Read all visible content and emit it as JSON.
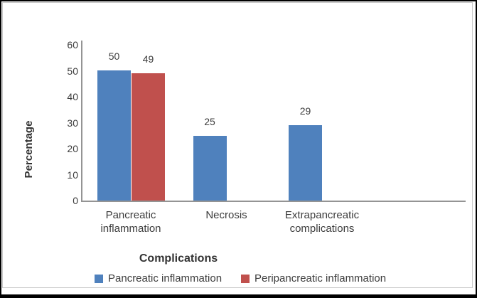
{
  "chart_data": {
    "type": "bar",
    "title": "",
    "xlabel": "Complications",
    "ylabel": "Percentage",
    "categories": [
      "Pancreatic inflammation",
      "Necrosis",
      "Extrapancreatic complications"
    ],
    "series": [
      {
        "name": "Pancreatic inflammation",
        "color": "#4F81BD",
        "values": [
          50,
          25,
          29
        ]
      },
      {
        "name": "Peripancreatic inflammation",
        "color": "#C0504D",
        "values": [
          49,
          null,
          null
        ]
      }
    ],
    "value_labels": [
      "50",
      "49",
      "25",
      "29"
    ],
    "show_value_labels": true,
    "yticks": [
      0,
      10,
      20,
      30,
      40,
      50,
      60
    ],
    "ylim": [
      0,
      60
    ],
    "grid": false,
    "legend_position": "bottom",
    "colors": {
      "axis_line": "#949494",
      "text": "#3C3C3C",
      "chart_border": "#C9C9C9",
      "outer_border": "#000000",
      "background": "#FFFFFF"
    }
  }
}
